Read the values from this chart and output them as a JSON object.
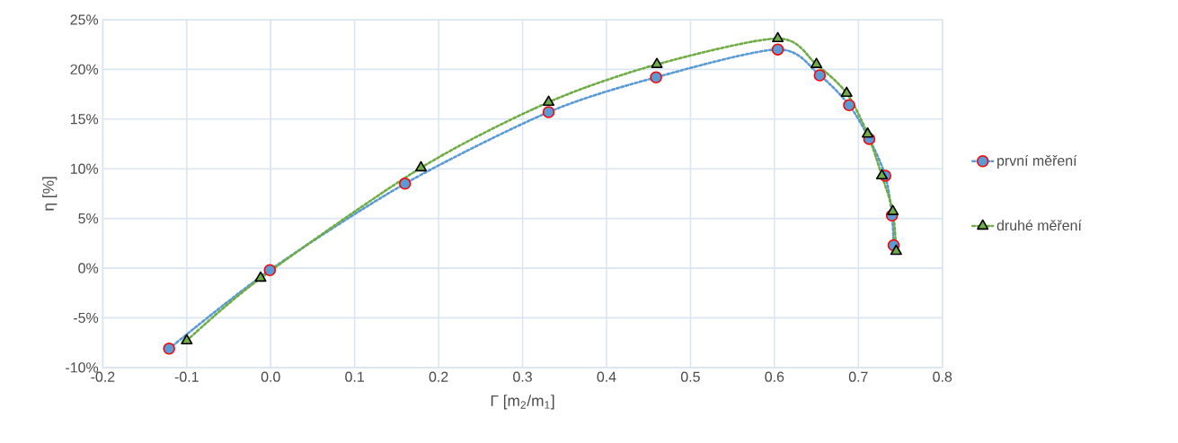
{
  "chart_data": {
    "type": "line",
    "xlabel": "Γ [m$_{2}$/m$_{1}$]",
    "ylabel": "η [%]",
    "xlim": [
      -0.2,
      0.8
    ],
    "ylim": [
      -10,
      25
    ],
    "xticks": [
      {
        "value": -0.2,
        "label": "-0.2"
      },
      {
        "value": -0.1,
        "label": "-0.1"
      },
      {
        "value": 0,
        "label": "0.0"
      },
      {
        "value": 0.1,
        "label": "0.1"
      },
      {
        "value": 0.2,
        "label": "0.2"
      },
      {
        "value": 0.3,
        "label": "0.3"
      },
      {
        "value": 0.4,
        "label": "0.4"
      },
      {
        "value": 0.5,
        "label": "0.5"
      },
      {
        "value": 0.6,
        "label": "0.6"
      },
      {
        "value": 0.7,
        "label": "0.7"
      },
      {
        "value": 0.8,
        "label": "0.8"
      }
    ],
    "yticks": [
      {
        "value": -10,
        "label": "-10%"
      },
      {
        "value": -5,
        "label": "-5%"
      },
      {
        "value": 0,
        "label": "0%"
      },
      {
        "value": 5,
        "label": "5%"
      },
      {
        "value": 10,
        "label": "10%"
      },
      {
        "value": 15,
        "label": "15%"
      },
      {
        "value": 20,
        "label": "20%"
      },
      {
        "value": 25,
        "label": "25%"
      }
    ],
    "grid": true,
    "legend": "right",
    "line_style": "dotted",
    "series": [
      {
        "name": "první měření",
        "color": "#5b9bd5",
        "marker": "circle",
        "x": [
          -0.121,
          -0.001,
          0.16,
          0.331,
          0.459,
          0.604,
          0.654,
          0.689,
          0.713,
          0.732,
          0.74,
          0.742
        ],
        "values": [
          -8.1,
          -0.2,
          8.5,
          15.7,
          19.2,
          22.0,
          19.4,
          16.4,
          13.0,
          9.3,
          5.3,
          2.3
        ]
      },
      {
        "name": "druhé měření",
        "color": "#70ad47",
        "marker": "triangle",
        "x": [
          -0.1,
          -0.012,
          0.179,
          0.331,
          0.46,
          0.604,
          0.65,
          0.686,
          0.711,
          0.728,
          0.741,
          0.745
        ],
        "values": [
          -7.3,
          -1.0,
          10.1,
          16.7,
          20.5,
          23.1,
          20.5,
          17.6,
          13.5,
          9.3,
          5.7,
          1.7
        ]
      }
    ]
  }
}
